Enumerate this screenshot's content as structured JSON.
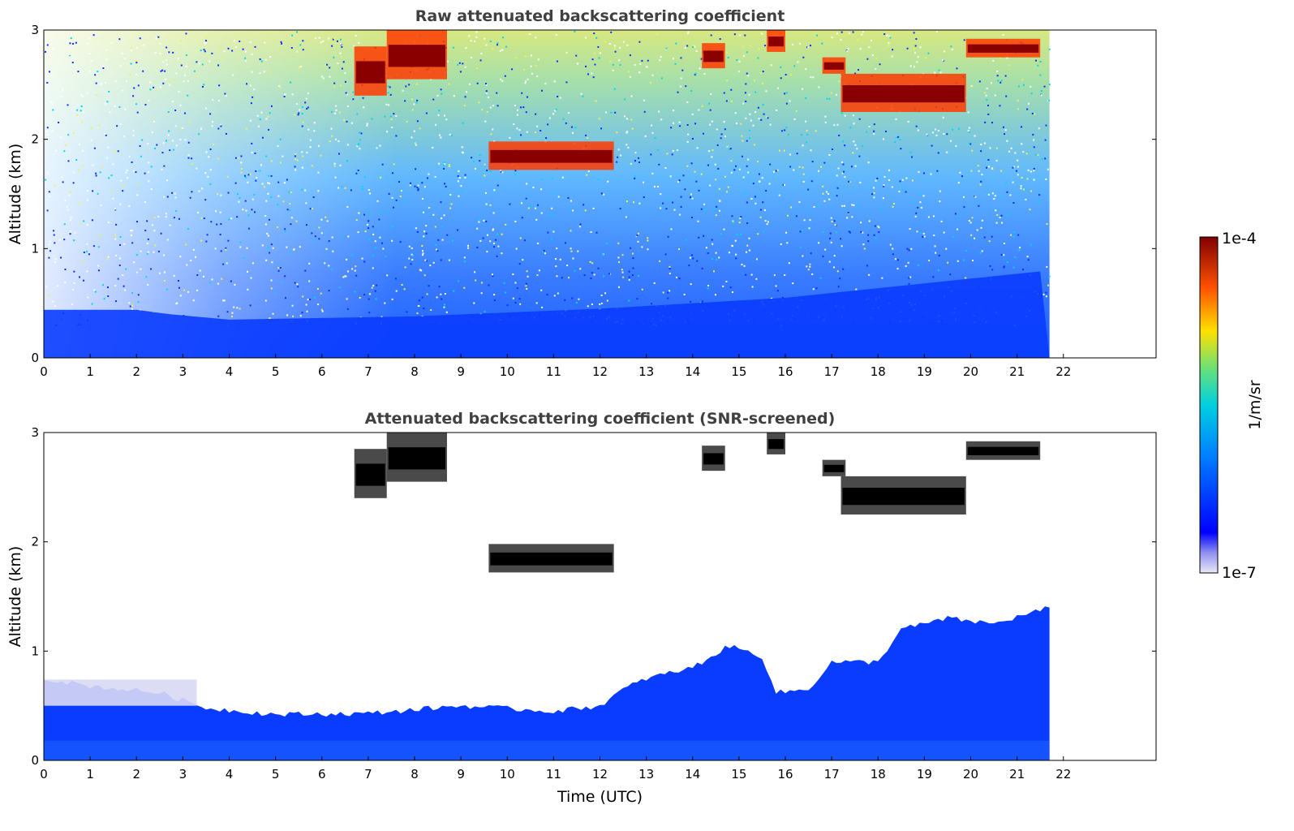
{
  "chart_data": [
    {
      "type": "heatmap",
      "title": "Raw attenuated backscattering coefficient",
      "xlabel": "",
      "ylabel": "Altitude (km)",
      "xlim": [
        0,
        24
      ],
      "ylim": [
        0,
        3
      ],
      "xticks": [
        "0",
        "1",
        "2",
        "3",
        "4",
        "5",
        "6",
        "7",
        "8",
        "9",
        "10",
        "11",
        "12",
        "13",
        "14",
        "15",
        "16",
        "17",
        "18",
        "19",
        "20",
        "21",
        "22"
      ],
      "yticks": [
        "0",
        "1",
        "2",
        "3"
      ],
      "data_extent_hours": [
        0,
        21.7
      ],
      "boundary_layer_top_km": [
        {
          "t": 0,
          "z": 0.44
        },
        {
          "t": 2,
          "z": 0.44
        },
        {
          "t": 2.7,
          "z": 0.4
        },
        {
          "t": 4,
          "z": 0.35
        },
        {
          "t": 8,
          "z": 0.38
        },
        {
          "t": 12,
          "z": 0.45
        },
        {
          "t": 16,
          "z": 0.55
        },
        {
          "t": 21.7,
          "z": 0.8
        }
      ],
      "cloud_layers": [
        {
          "t_start": 6.7,
          "t_end": 7.4,
          "z_base_km": 2.4,
          "z_top_km": 2.85
        },
        {
          "t_start": 7.4,
          "t_end": 8.7,
          "z_base_km": 2.55,
          "z_top_km": 3.0
        },
        {
          "t_start": 9.6,
          "t_end": 12.3,
          "z_base_km": 1.72,
          "z_top_km": 1.98
        },
        {
          "t_start": 14.2,
          "t_end": 14.7,
          "z_base_km": 2.65,
          "z_top_km": 2.88
        },
        {
          "t_start": 15.6,
          "t_end": 16.0,
          "z_base_km": 2.8,
          "z_top_km": 3.0
        },
        {
          "t_start": 16.8,
          "t_end": 17.3,
          "z_base_km": 2.6,
          "z_top_km": 2.75
        },
        {
          "t_start": 17.2,
          "t_end": 19.9,
          "z_base_km": 2.25,
          "z_top_km": 2.6
        },
        {
          "t_start": 19.9,
          "t_end": 21.5,
          "z_base_km": 2.75,
          "z_top_km": 2.92
        }
      ]
    },
    {
      "type": "heatmap",
      "title": "Attenuated backscattering coefficient (SNR-screened)",
      "xlabel": "Time (UTC)",
      "ylabel": "Altitude (km)",
      "xlim": [
        0,
        24
      ],
      "ylim": [
        0,
        3
      ],
      "xticks": [
        "0",
        "1",
        "2",
        "3",
        "4",
        "5",
        "6",
        "7",
        "8",
        "9",
        "10",
        "11",
        "12",
        "13",
        "14",
        "15",
        "16",
        "17",
        "18",
        "19",
        "20",
        "21",
        "22"
      ],
      "yticks": [
        "0",
        "1",
        "2",
        "3"
      ],
      "data_extent_hours": [
        0,
        21.7
      ],
      "boundary_layer_top_km": [
        {
          "t": 0,
          "z": 0.75
        },
        {
          "t": 1,
          "z": 0.68
        },
        {
          "t": 2.5,
          "z": 0.62
        },
        {
          "t": 3.5,
          "z": 0.48
        },
        {
          "t": 5,
          "z": 0.42
        },
        {
          "t": 7,
          "z": 0.43
        },
        {
          "t": 9,
          "z": 0.5
        },
        {
          "t": 11,
          "z": 0.45
        },
        {
          "t": 12,
          "z": 0.5
        },
        {
          "t": 12.5,
          "z": 0.65
        },
        {
          "t": 13,
          "z": 0.75
        },
        {
          "t": 14,
          "z": 0.85
        },
        {
          "t": 14.8,
          "z": 1.05
        },
        {
          "t": 15.5,
          "z": 0.95
        },
        {
          "t": 15.8,
          "z": 0.62
        },
        {
          "t": 16.5,
          "z": 0.65
        },
        {
          "t": 17,
          "z": 0.9
        },
        {
          "t": 18,
          "z": 0.9
        },
        {
          "t": 18.5,
          "z": 1.2
        },
        {
          "t": 19.5,
          "z": 1.3
        },
        {
          "t": 20.5,
          "z": 1.25
        },
        {
          "t": 21.7,
          "z": 1.4
        }
      ],
      "cloud_layers": [
        {
          "t_start": 6.7,
          "t_end": 7.4,
          "z_base_km": 2.4,
          "z_top_km": 2.85
        },
        {
          "t_start": 7.4,
          "t_end": 8.7,
          "z_base_km": 2.55,
          "z_top_km": 3.0
        },
        {
          "t_start": 9.6,
          "t_end": 12.3,
          "z_base_km": 1.72,
          "z_top_km": 1.98
        },
        {
          "t_start": 14.2,
          "t_end": 14.7,
          "z_base_km": 2.65,
          "z_top_km": 2.88
        },
        {
          "t_start": 15.6,
          "t_end": 16.0,
          "z_base_km": 2.8,
          "z_top_km": 3.0
        },
        {
          "t_start": 16.8,
          "t_end": 17.3,
          "z_base_km": 2.6,
          "z_top_km": 2.75
        },
        {
          "t_start": 17.2,
          "t_end": 19.9,
          "z_base_km": 2.25,
          "z_top_km": 2.6
        },
        {
          "t_start": 19.9,
          "t_end": 21.5,
          "z_base_km": 2.75,
          "z_top_km": 2.92
        }
      ]
    }
  ],
  "colorbar": {
    "label": "1/m/sr",
    "min_label": "1e-7",
    "max_label": "1e-4",
    "scale": "log",
    "colormap": "jet",
    "colors": [
      "#e8e8f8",
      "#0000ff",
      "#00c8ff",
      "#ffe000",
      "#ff3000",
      "#800000"
    ]
  }
}
